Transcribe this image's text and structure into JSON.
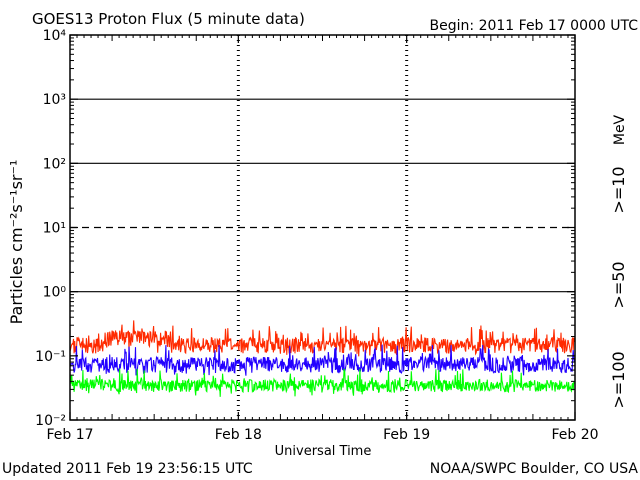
{
  "chart_data": {
    "type": "line",
    "title": "GOES13 Proton Flux (5 minute data)",
    "begin_label": "Begin: 2011 Feb 17 0000 UTC",
    "ylabel": "Particles cm⁻²s⁻¹sr⁻¹",
    "xlabel": "Universal Time",
    "x_ticks": [
      "Feb 17",
      "Feb 18",
      "Feb 19",
      "Feb 20"
    ],
    "y_ticks": [
      "10⁻²",
      "10⁻¹",
      "10⁰",
      "10¹",
      "10²",
      "10³",
      "10⁴"
    ],
    "y_scale": "log",
    "ylim": [
      0.01,
      10000
    ],
    "xlim_days": [
      0,
      3
    ],
    "thresholds": [
      {
        "value": 10,
        "style": "dashed"
      },
      {
        "value": 1,
        "style": "solid"
      },
      {
        "value": 100,
        "style": "solid"
      },
      {
        "value": 1000,
        "style": "solid"
      }
    ],
    "series": [
      {
        "name": ">=10",
        "color": "#ff2a00",
        "baseline": 0.15,
        "spread": 0.55
      },
      {
        "name": ">=50",
        "color": "#2200ff",
        "baseline": 0.075,
        "spread": 0.55
      },
      {
        "name": ">=100",
        "color": "#00ff00",
        "baseline": 0.035,
        "spread": 0.45
      }
    ],
    "unit_label": "MeV",
    "footer_left": "Updated 2011 Feb 19 23:56:15 UTC",
    "footer_right": "NOAA/SWPC Boulder, CO USA"
  }
}
